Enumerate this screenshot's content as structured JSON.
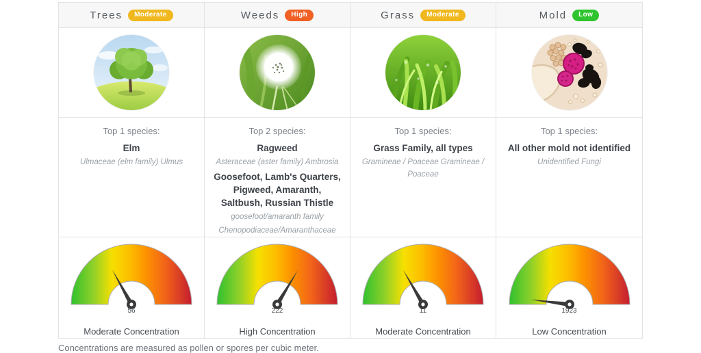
{
  "columns": [
    {
      "title": "Trees",
      "level": "Moderate",
      "level_color": "#f0b81d",
      "image": "tree-photo",
      "top_label": "Top 1 species:",
      "species": [
        {
          "name": "Elm",
          "latin": [
            "Ulmaceae (elm family) Ulmus"
          ]
        }
      ],
      "gauge": {
        "value": "56",
        "label": "Moderate Concentration",
        "needle_deg": -29
      }
    },
    {
      "title": "Weeds",
      "level": "High",
      "level_color": "#f05f24",
      "image": "dandelion-photo",
      "top_label": "Top 2 species:",
      "species": [
        {
          "name": "Ragweed",
          "latin": [
            "Asteraceae (aster family) Ambrosia"
          ]
        },
        {
          "name": "Goosefoot, Lamb's Quarters, Pigweed, Amaranth, Saltbush, Russian Thistle",
          "latin": [
            "goosefoot/amaranth family",
            "Chenopodiaceae/Amaranthaceae"
          ]
        }
      ],
      "gauge": {
        "value": "222",
        "label": "High Concentration",
        "needle_deg": 31
      }
    },
    {
      "title": "Grass",
      "level": "Moderate",
      "level_color": "#f0b81d",
      "image": "grass-photo",
      "top_label": "Top 1 species:",
      "species": [
        {
          "name": "Grass Family, all types",
          "latin": [
            "Gramineae / Poaceae Gramineae / Poaceae"
          ]
        }
      ],
      "gauge": {
        "value": "11",
        "label": "Moderate Concentration",
        "needle_deg": -30
      }
    },
    {
      "title": "Mold",
      "level": "Low",
      "level_color": "#2ec42e",
      "image": "mold-photo",
      "top_label": "Top 1 species:",
      "species": [
        {
          "name": "All other mold not identified",
          "latin": [
            "Unidentified Fungi"
          ]
        }
      ],
      "gauge": {
        "value": "1923",
        "label": "Low Concentration",
        "needle_deg": -83
      }
    }
  ],
  "gauge_gradient": [
    "#2fc12f",
    "#8ed029",
    "#f6e000",
    "#fdbf00",
    "#fd9200",
    "#f26419",
    "#c41d30"
  ],
  "footer": {
    "note": "Concentrations are measured as pollen or spores per cubic meter."
  },
  "chart_data": [
    {
      "type": "gauge",
      "title": "Trees",
      "value": 56,
      "label": "Moderate Concentration"
    },
    {
      "type": "gauge",
      "title": "Weeds",
      "value": 222,
      "label": "High Concentration"
    },
    {
      "type": "gauge",
      "title": "Grass",
      "value": 11,
      "label": "Moderate Concentration"
    },
    {
      "type": "gauge",
      "title": "Mold",
      "value": 1923,
      "label": "Low Concentration"
    }
  ]
}
